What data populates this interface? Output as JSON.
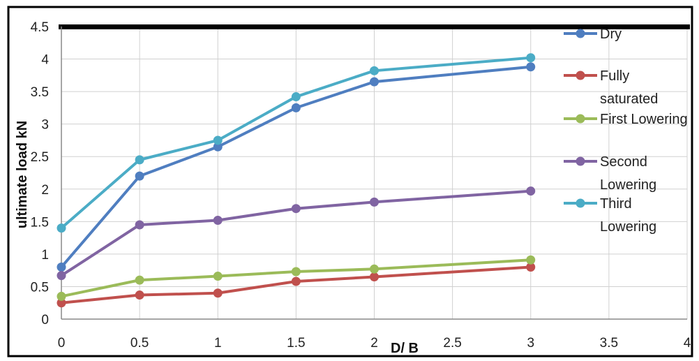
{
  "chart_data": {
    "type": "line",
    "xlabel": "D/ B",
    "ylabel": "ultimate load kN",
    "xlim": [
      0,
      4
    ],
    "ylim": [
      0,
      4.5
    ],
    "xticks": [
      "0",
      "0.5",
      "1",
      "1.5",
      "2",
      "2.5",
      "3",
      "3.5",
      "4"
    ],
    "yticks": [
      "0",
      "0.5",
      "1",
      "1.5",
      "2",
      "2.5",
      "3",
      "3.5",
      "4",
      "4.5"
    ],
    "grid": true,
    "legend_position": "right",
    "x": [
      0,
      0.5,
      1,
      1.5,
      2,
      3
    ],
    "series": [
      {
        "name": "Dry",
        "name_lines": [
          "Dry"
        ],
        "color": "#4f7ec0",
        "values": [
          0.8,
          2.2,
          2.65,
          3.25,
          3.65,
          3.88
        ]
      },
      {
        "name": "Fully saturated",
        "name_lines": [
          "Fully",
          "saturated"
        ],
        "color": "#c0504d",
        "values": [
          0.25,
          0.37,
          0.4,
          0.58,
          0.65,
          0.8
        ]
      },
      {
        "name": "First Lowering",
        "name_lines": [
          "First Lowering"
        ],
        "color": "#9bbb59",
        "values": [
          0.35,
          0.6,
          0.66,
          0.73,
          0.77,
          0.91
        ]
      },
      {
        "name": "Second Lowering",
        "name_lines": [
          "Second",
          "Lowering"
        ],
        "color": "#8064a2",
        "values": [
          0.67,
          1.45,
          1.52,
          1.7,
          1.8,
          1.97
        ]
      },
      {
        "name": "Third Lowering",
        "name_lines": [
          "Third",
          "Lowering"
        ],
        "color": "#4bacc6",
        "values": [
          1.4,
          2.45,
          2.75,
          3.42,
          3.82,
          4.02
        ]
      }
    ]
  }
}
